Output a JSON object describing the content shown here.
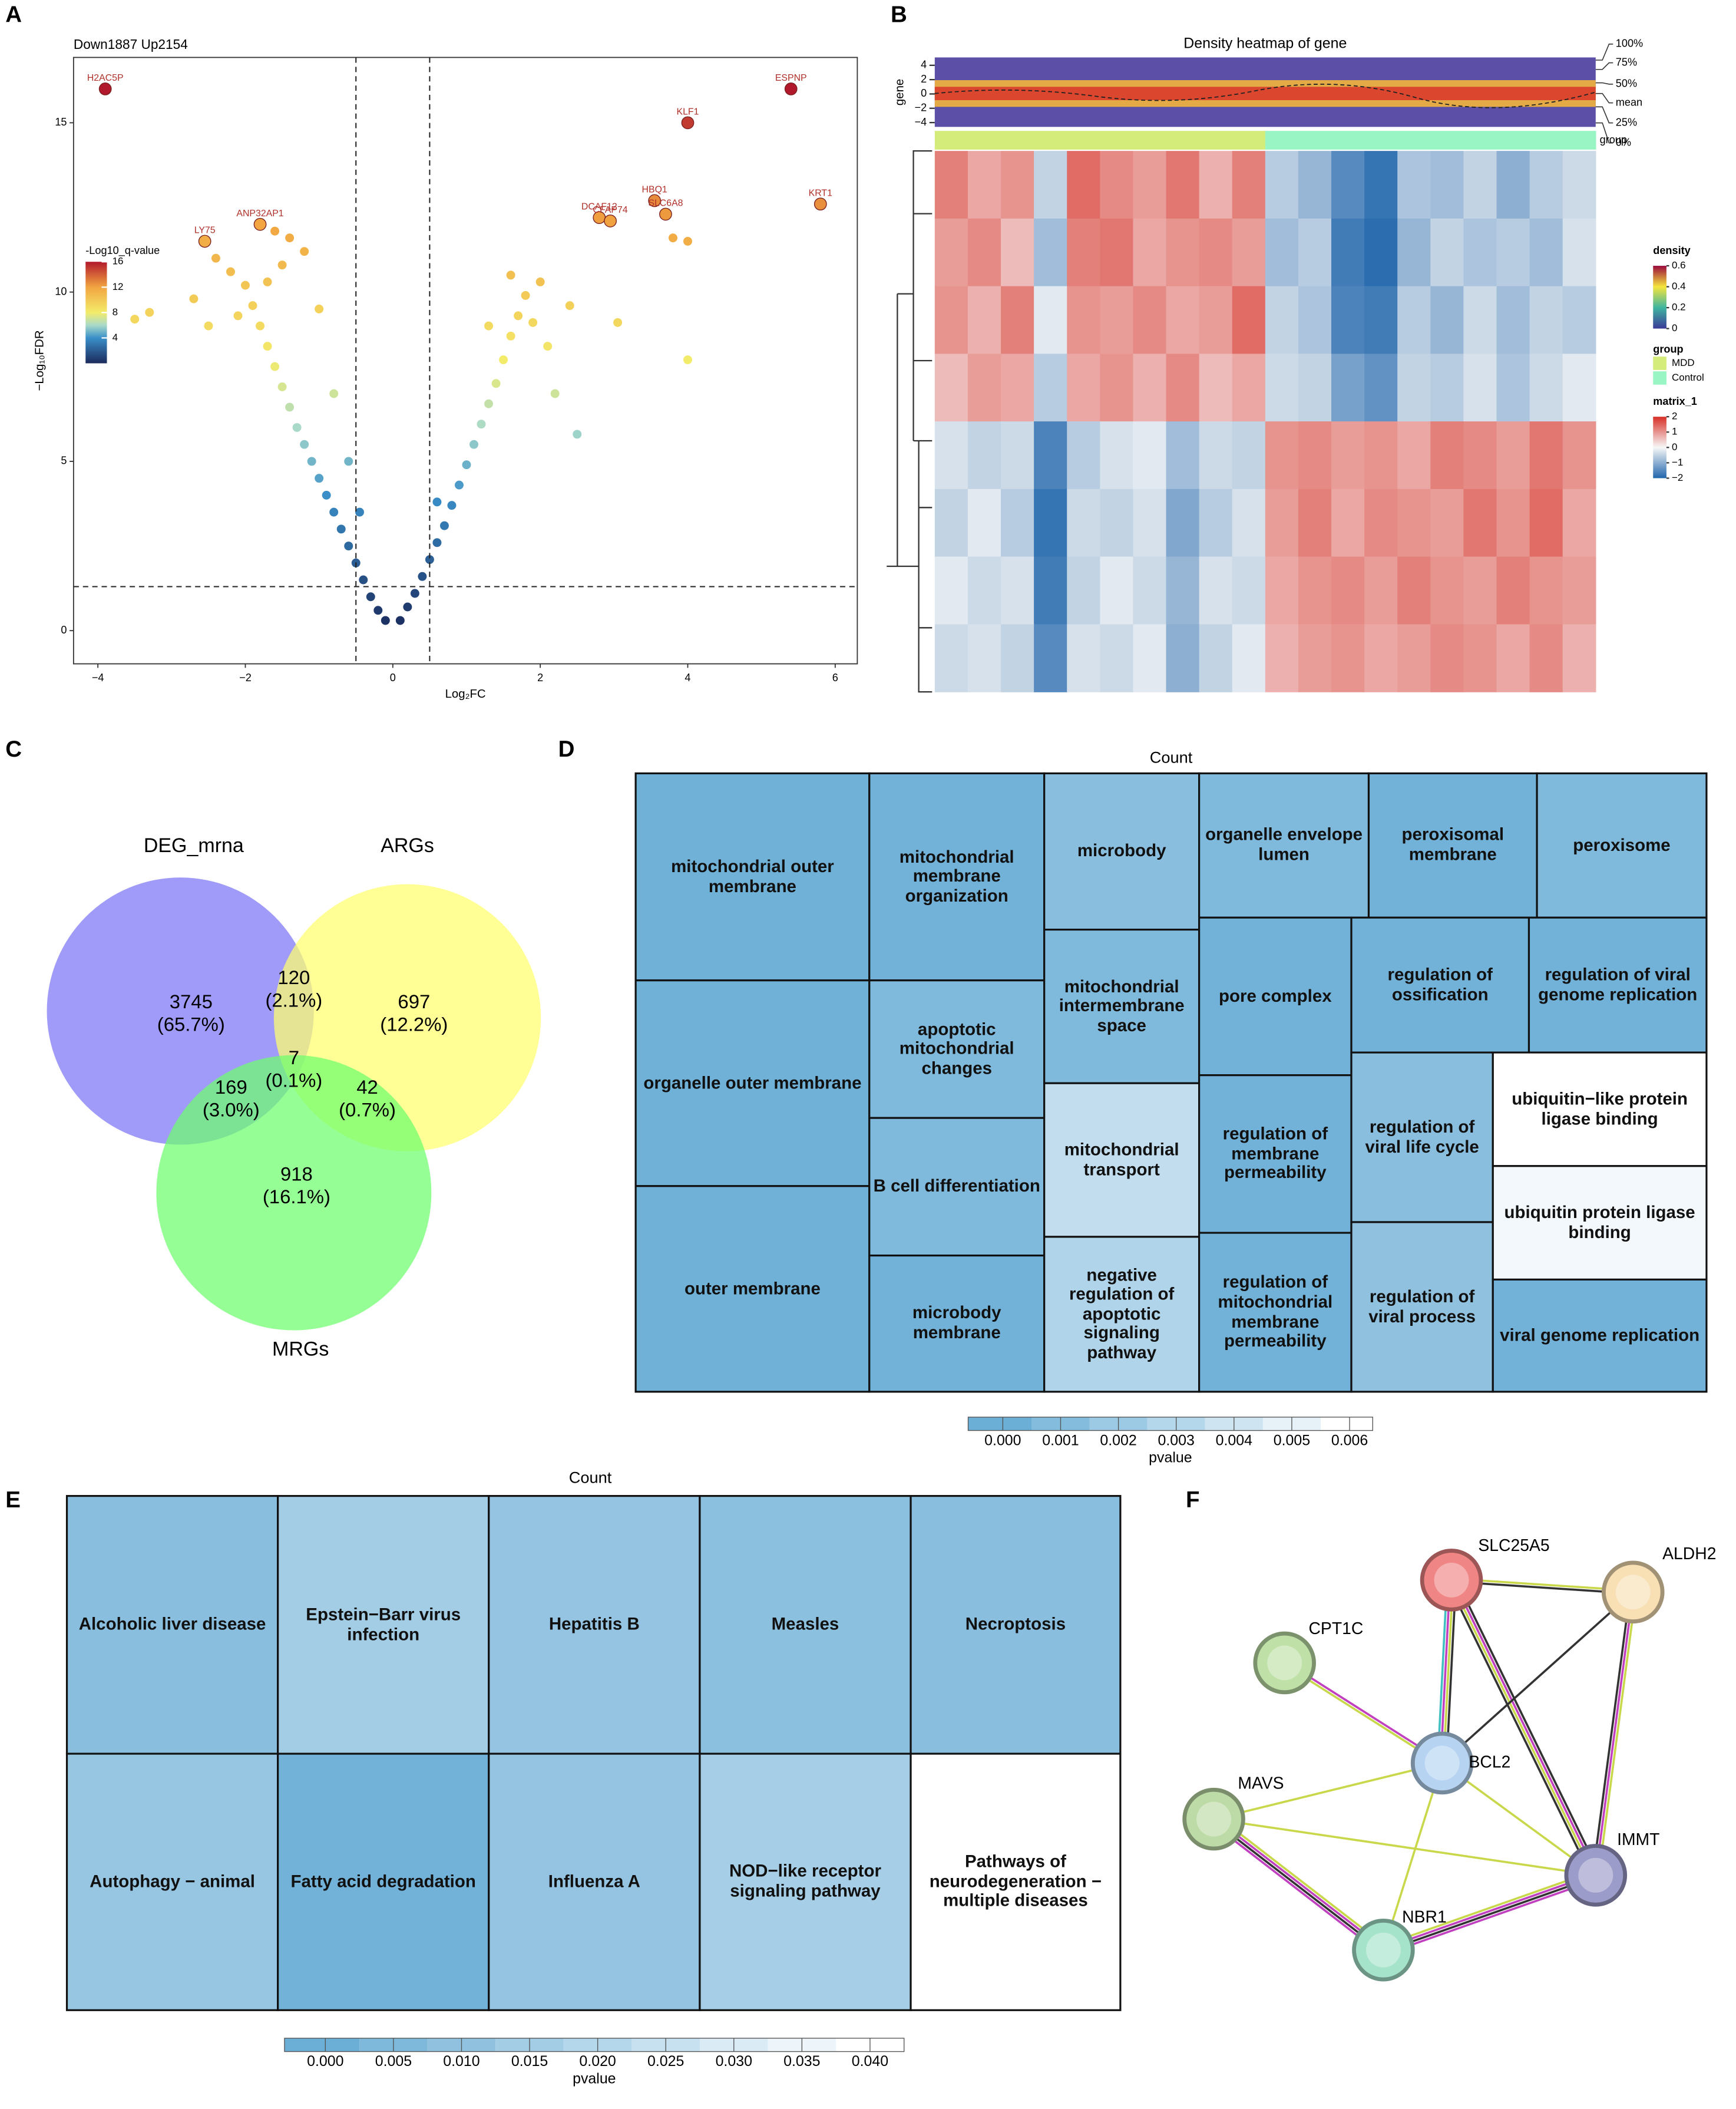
{
  "panel_labels": [
    "A",
    "B",
    "C",
    "D",
    "E",
    "F"
  ],
  "volcano": {
    "type": "scatter",
    "title": "Down1887 Up2154",
    "x_label": "Log₂FC",
    "y_label": "−Log₁₀FDR",
    "xlim": [
      -4.33,
      6.3
    ],
    "ylim": [
      -0.98,
      16.93
    ],
    "xticks": [
      {
        "value": -4,
        "label": "−4"
      },
      {
        "value": -2,
        "label": "−2"
      },
      0,
      2,
      4,
      6
    ],
    "yticks": [
      0,
      5,
      10,
      15
    ],
    "vlines": [
      -0.5,
      0.5
    ],
    "hline": 1.3,
    "colorbar_title": "-Log10_q-value",
    "colorbar_ticks": [
      4,
      8,
      12,
      16
    ],
    "colorscale": [
      [
        0,
        "#1b2a5c"
      ],
      [
        4,
        "#3a8fc9"
      ],
      [
        6,
        "#a9dac9"
      ],
      [
        8,
        "#f3ec6b"
      ],
      [
        12,
        "#f2a541"
      ],
      [
        16,
        "#b2182b"
      ]
    ],
    "points": {
      "x": [
        -0.1,
        -0.2,
        -0.3,
        -0.4,
        -0.5,
        -0.6,
        -0.7,
        -0.8,
        -0.9,
        -1.0,
        -1.1,
        -1.2,
        -1.3,
        -1.4,
        -1.5,
        -1.6,
        -1.7,
        -1.8,
        -1.9,
        -2.0,
        -2.2,
        -2.4,
        -1.5,
        -1.2,
        -2.7,
        -3.5,
        -3.3,
        -1.4,
        -1.6,
        -2.1,
        -1.0,
        -0.8,
        -0.6,
        -0.45,
        -1.7,
        -2.5,
        0.1,
        0.2,
        0.3,
        0.4,
        0.5,
        0.6,
        0.7,
        0.8,
        0.9,
        1.0,
        1.1,
        1.2,
        1.3,
        1.4,
        1.5,
        1.6,
        1.7,
        1.8,
        1.6,
        2.0,
        1.9,
        2.1,
        2.4,
        3.05,
        4.0,
        3.8,
        4.0,
        2.2,
        2.5,
        1.3,
        0.6
      ],
      "y": [
        0.3,
        0.6,
        1.0,
        1.5,
        2.0,
        2.5,
        3.0,
        3.5,
        4.0,
        4.5,
        5.0,
        5.5,
        6.0,
        6.6,
        7.2,
        7.8,
        8.4,
        9.0,
        9.6,
        10.2,
        10.6,
        11.0,
        10.8,
        11.2,
        9.8,
        9.2,
        9.4,
        11.6,
        11.8,
        9.3,
        9.5,
        7.0,
        5.0,
        3.5,
        10.3,
        9.0,
        0.3,
        0.7,
        1.1,
        1.6,
        2.1,
        2.6,
        3.1,
        3.7,
        4.3,
        4.9,
        5.5,
        6.1,
        6.7,
        7.3,
        8.0,
        8.7,
        9.3,
        9.9,
        10.5,
        10.3,
        9.1,
        8.4,
        9.6,
        9.1,
        8.0,
        11.6,
        11.5,
        7.0,
        5.8,
        9.0,
        3.8
      ]
    },
    "genes": [
      {
        "name": "H2AC5P",
        "x": -3.9,
        "y": 16.0
      },
      {
        "name": "ESPNP",
        "x": 5.4,
        "y": 16.0
      },
      {
        "name": "KLF1",
        "x": 4.0,
        "y": 15.0
      },
      {
        "name": "HBQ1",
        "x": 3.55,
        "y": 12.7
      },
      {
        "name": "DCAF12",
        "x": 2.8,
        "y": 12.2
      },
      {
        "name": "SLC6A8",
        "x": 3.7,
        "y": 12.3
      },
      {
        "name": "CFAP74",
        "x": 2.95,
        "y": 12.1
      },
      {
        "name": "KRT1",
        "x": 5.8,
        "y": 12.6
      },
      {
        "name": "LY75",
        "x": -2.55,
        "y": 11.5
      },
      {
        "name": "ANP32AP1",
        "x": -1.8,
        "y": 12.0
      }
    ]
  },
  "heatmap": {
    "type": "heatmap",
    "title": "Density heatmap of gene",
    "density_axis_label": "gene",
    "density_ylim": [
      -4.6,
      5.1
    ],
    "density_yticks": [
      4,
      2,
      0,
      {
        "value": -2,
        "label": "−2"
      },
      {
        "value": -4,
        "label": "−4"
      }
    ],
    "quantile_labels": [
      "100%",
      "75%",
      "50%",
      "mean",
      "25%",
      "0%"
    ],
    "group_label": "group",
    "groups": [
      {
        "name": "MDD",
        "color": "#d4ec7a"
      },
      {
        "name": "Control",
        "color": "#99f5c4"
      }
    ],
    "sample_groups": [
      "MDD",
      "MDD",
      "MDD",
      "MDD",
      "MDD",
      "MDD",
      "MDD",
      "MDD",
      "MDD",
      "MDD",
      "Control",
      "Control",
      "Control",
      "Control",
      "Control",
      "Control",
      "Control",
      "Control",
      "Control",
      "Control"
    ],
    "density_legend_title": "density",
    "density_ticks": [
      0.6,
      0.4,
      0.2,
      0
    ],
    "density_colorscale": [
      [
        0,
        "#3b3b98"
      ],
      [
        0.2,
        "#3fb5a0"
      ],
      [
        0.4,
        "#f5e53c"
      ],
      [
        0.6,
        "#9b0a3c"
      ]
    ],
    "group_legend_title": "group",
    "matrix_legend_title": "matrix_1",
    "matrix_ticks": [
      2,
      1,
      0,
      {
        "value": -1,
        "label": "−1"
      },
      {
        "value": -2,
        "label": "−2"
      }
    ],
    "matrix_colorscale": [
      [
        -2,
        "#2166ac"
      ],
      [
        0,
        "#f7f7f7"
      ],
      [
        2,
        "#d73027"
      ]
    ],
    "matrix": [
      [
        1.2,
        0.8,
        1.0,
        -0.5,
        1.4,
        1.1,
        0.9,
        1.3,
        0.7,
        1.2,
        -0.6,
        -0.9,
        -1.5,
        -1.8,
        -0.7,
        -0.8,
        -0.5,
        -1.0,
        -0.6,
        -0.4
      ],
      [
        0.9,
        1.1,
        0.6,
        -0.8,
        1.2,
        1.3,
        0.8,
        1.0,
        1.1,
        0.9,
        -0.8,
        -0.6,
        -1.7,
        -1.9,
        -0.9,
        -0.5,
        -0.7,
        -0.6,
        -0.8,
        -0.3
      ],
      [
        1.0,
        0.7,
        1.2,
        -0.2,
        1.0,
        0.9,
        1.1,
        0.8,
        0.9,
        1.4,
        -0.5,
        -0.7,
        -1.6,
        -1.7,
        -0.6,
        -0.9,
        -0.4,
        -0.8,
        -0.5,
        -0.6
      ],
      [
        0.6,
        0.9,
        0.8,
        -0.6,
        0.8,
        1.0,
        0.7,
        1.1,
        0.6,
        0.8,
        -0.4,
        -0.5,
        -1.2,
        -1.4,
        -0.5,
        -0.6,
        -0.3,
        -0.7,
        -0.4,
        -0.2
      ],
      [
        -0.3,
        -0.5,
        -0.4,
        -1.6,
        -0.6,
        -0.3,
        -0.2,
        -0.8,
        -0.4,
        -0.5,
        1.0,
        1.1,
        0.9,
        1.0,
        0.8,
        1.2,
        1.1,
        0.9,
        1.3,
        1.0
      ],
      [
        -0.5,
        -0.2,
        -0.6,
        -1.8,
        -0.4,
        -0.5,
        -0.3,
        -1.1,
        -0.6,
        -0.3,
        0.9,
        1.2,
        0.8,
        1.1,
        1.0,
        0.9,
        1.3,
        1.0,
        1.4,
        0.8
      ],
      [
        -0.2,
        -0.4,
        -0.3,
        -1.7,
        -0.5,
        -0.2,
        -0.4,
        -0.9,
        -0.3,
        -0.4,
        0.8,
        1.0,
        1.1,
        0.9,
        1.2,
        1.0,
        0.9,
        1.2,
        1.0,
        0.9
      ],
      [
        -0.4,
        -0.3,
        -0.5,
        -1.5,
        -0.3,
        -0.4,
        -0.2,
        -1.0,
        -0.5,
        -0.2,
        0.7,
        0.9,
        1.0,
        0.8,
        0.9,
        1.1,
        1.0,
        0.8,
        1.1,
        0.7
      ]
    ]
  },
  "venn": {
    "type": "venn",
    "sets": [
      {
        "name": "DEG_mrna",
        "color": "#7b75f5"
      },
      {
        "name": "ARGs",
        "color": "#ffff6e"
      },
      {
        "name": "MRGs",
        "color": "#6cff6c"
      }
    ],
    "regions": [
      {
        "count": 3745,
        "percent": "(65.7%)"
      },
      {
        "count": 120,
        "percent": "(2.1%)"
      },
      {
        "count": 697,
        "percent": "(12.2%)"
      },
      {
        "count": 7,
        "percent": "(0.1%)"
      },
      {
        "count": 169,
        "percent": "(3.0%)"
      },
      {
        "count": 42,
        "percent": "(0.7%)"
      },
      {
        "count": 918,
        "percent": "(16.1%)"
      }
    ]
  },
  "go_treemap": {
    "type": "treemap",
    "title": "Count",
    "legend_title": "pvalue",
    "lim": [
      -0.0006,
      0.0064
    ],
    "ticks": [
      {
        "value": 0,
        "label": "0.000"
      },
      {
        "value": 0.001,
        "label": "0.001"
      },
      {
        "value": 0.002,
        "label": "0.002"
      },
      {
        "value": 0.003,
        "label": "0.003"
      },
      {
        "value": 0.004,
        "label": "0.004"
      },
      {
        "value": 0.005,
        "label": "0.005"
      },
      {
        "value": 0.006,
        "label": "0.006"
      }
    ],
    "colors": [
      "#6baed6",
      "#ffffff"
    ],
    "tiles": [
      {
        "label": "mitochondrial outer membrane",
        "pvalue": 0.0002
      },
      {
        "label": "organelle outer membrane",
        "pvalue": 0.0002
      },
      {
        "label": "outer membrane",
        "pvalue": 0.0002
      },
      {
        "label": "mitochondrial membrane organization",
        "pvalue": 0.0003
      },
      {
        "label": "apoptotic mitochondrial changes",
        "pvalue": 0.0008
      },
      {
        "label": "B cell differentiation",
        "pvalue": 0.0008
      },
      {
        "label": "microbody membrane",
        "pvalue": 0.0003
      },
      {
        "label": "microbody",
        "pvalue": 0.0012
      },
      {
        "label": "mitochondrial intermembrane space",
        "pvalue": 0.0008
      },
      {
        "label": "mitochondrial transport",
        "pvalue": 0.0035
      },
      {
        "label": "negative regulation of apoptotic signaling pathway",
        "pvalue": 0.0028
      },
      {
        "label": "organelle envelope lumen",
        "pvalue": 0.0008
      },
      {
        "label": "peroxisomal membrane",
        "pvalue": 0.0003
      },
      {
        "label": "peroxisome",
        "pvalue": 0.0008
      },
      {
        "label": "pore complex",
        "pvalue": 0.0003
      },
      {
        "label": "regulation of ossification",
        "pvalue": 0.0003
      },
      {
        "label": "regulation of viral genome replication",
        "pvalue": 0.0003
      },
      {
        "label": "regulation of membrane permeability",
        "pvalue": 0.0003
      },
      {
        "label": "regulation of mitochondrial membrane permeability",
        "pvalue": 0.0003
      },
      {
        "label": "regulation of viral life cycle",
        "pvalue": 0.0012
      },
      {
        "label": "regulation of viral process",
        "pvalue": 0.0015
      },
      {
        "label": "ubiquitin−like protein ligase binding",
        "pvalue": 0.006
      },
      {
        "label": "ubiquitin protein ligase binding",
        "pvalue": 0.0055
      },
      {
        "label": "viral genome replication",
        "pvalue": 0.0003
      }
    ]
  },
  "kegg_treemap": {
    "type": "treemap",
    "title": "Count",
    "legend_title": "pvalue",
    "lim": [
      -0.003,
      0.0425
    ],
    "ticks": [
      {
        "value": 0,
        "label": "0.000"
      },
      {
        "value": 0.005,
        "label": "0.005"
      },
      {
        "value": 0.01,
        "label": "0.010"
      },
      {
        "value": 0.015,
        "label": "0.015"
      },
      {
        "value": 0.02,
        "label": "0.020"
      },
      {
        "value": 0.025,
        "label": "0.025"
      },
      {
        "value": 0.03,
        "label": "0.030"
      },
      {
        "value": 0.035,
        "label": "0.035"
      },
      {
        "value": 0.04,
        "label": "0.040"
      }
    ],
    "colors": [
      "#6baed6",
      "#ffffff"
    ],
    "tiles": [
      {
        "label": "Alcoholic liver disease",
        "pvalue": 0.008
      },
      {
        "label": "Epstein−Barr virus infection",
        "pvalue": 0.015
      },
      {
        "label": "Hepatitis B",
        "pvalue": 0.011
      },
      {
        "label": "Measles",
        "pvalue": 0.009
      },
      {
        "label": "Necroptosis",
        "pvalue": 0.008
      },
      {
        "label": "Autophagy − animal",
        "pvalue": 0.012
      },
      {
        "label": "Fatty acid degradation",
        "pvalue": 0.002
      },
      {
        "label": "Influenza A",
        "pvalue": 0.011
      },
      {
        "label": "NOD−like receptor signaling pathway",
        "pvalue": 0.016
      },
      {
        "label": "Pathways of neurodegeneration − multiple diseases",
        "pvalue": 0.04
      }
    ]
  },
  "network": {
    "type": "network",
    "nodes": [
      {
        "label": "SLC25A5",
        "color": "#f08585"
      },
      {
        "label": "ALDH2",
        "color": "#f8dfb4"
      },
      {
        "label": "CPT1C",
        "color": "#bfe0a6"
      },
      {
        "label": "BCL2",
        "color": "#b6d4f2"
      },
      {
        "label": "MAVS",
        "color": "#bddba6"
      },
      {
        "label": "IMMT",
        "color": "#9c9cca"
      },
      {
        "label": "NBR1",
        "color": "#a6e3cb"
      }
    ],
    "edges": [
      {
        "source": "SLC25A5",
        "target": "ALDH2",
        "colors": [
          "#c8d84a",
          "#333333"
        ]
      },
      {
        "source": "SLC25A5",
        "target": "BCL2",
        "colors": [
          "#333333",
          "#c8d84a",
          "#c040c0",
          "#40c0c0"
        ]
      },
      {
        "source": "SLC25A5",
        "target": "IMMT",
        "colors": [
          "#333333",
          "#c040c0",
          "#c8d84a",
          "#333333"
        ]
      },
      {
        "source": "ALDH2",
        "target": "BCL2",
        "colors": [
          "#333333"
        ]
      },
      {
        "source": "ALDH2",
        "target": "IMMT",
        "colors": [
          "#c8d84a",
          "#c040c0",
          "#333333"
        ]
      },
      {
        "source": "CPT1C",
        "target": "BCL2",
        "colors": [
          "#c040c0",
          "#c8d84a"
        ]
      },
      {
        "source": "BCL2",
        "target": "MAVS",
        "colors": [
          "#c8d84a"
        ]
      },
      {
        "source": "BCL2",
        "target": "NBR1",
        "colors": [
          "#c8d84a"
        ]
      },
      {
        "source": "BCL2",
        "target": "IMMT",
        "colors": [
          "#c8d84a"
        ]
      },
      {
        "source": "MAVS",
        "target": "IMMT",
        "colors": [
          "#c8d84a"
        ]
      },
      {
        "source": "MAVS",
        "target": "NBR1",
        "colors": [
          "#c8d84a",
          "#c040c0",
          "#333333",
          "#c040c0"
        ]
      },
      {
        "source": "NBR1",
        "target": "IMMT",
        "colors": [
          "#c8d84a",
          "#c040c0",
          "#333333",
          "#c040c0"
        ]
      }
    ]
  }
}
